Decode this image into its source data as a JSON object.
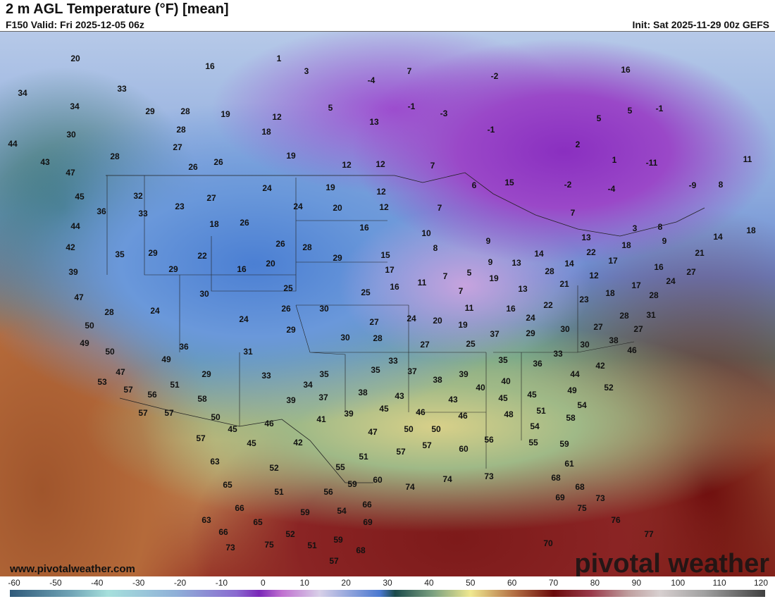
{
  "header": {
    "title": "2 m AGL Temperature (°F) [mean]",
    "valid": "F150 Valid: Fri 2025-12-05 06z",
    "init": "Init: Sat 2025-11-29 00z GEFS"
  },
  "footer": {
    "website": "www.pivotalweather.com",
    "logo": "pivotal weather"
  },
  "colorbar": {
    "units": "°F",
    "ticks": [
      "-60",
      "-50",
      "-40",
      "-30",
      "-20",
      "-10",
      "0",
      "10",
      "20",
      "30",
      "40",
      "50",
      "60",
      "70",
      "80",
      "90",
      "100",
      "110",
      "120"
    ]
  },
  "temperature_labels": [
    "20",
    "16",
    "1",
    "3",
    "-4",
    "7",
    "-2",
    "16",
    "34",
    "33",
    "34",
    "29",
    "28",
    "19",
    "12",
    "5",
    "-1",
    "-3",
    "5",
    "-1",
    "13",
    "30",
    "28",
    "18",
    "-1",
    "5",
    "27",
    "44",
    "28",
    "26",
    "26",
    "19",
    "12",
    "12",
    "7",
    "2",
    "1",
    "-11",
    "11",
    "43",
    "47",
    "45",
    "32",
    "27",
    "24",
    "19",
    "12",
    "6",
    "15",
    "-2",
    "-4",
    "-9",
    "8",
    "36",
    "33",
    "23",
    "24",
    "20",
    "12",
    "7",
    "7",
    "44",
    "18",
    "26",
    "16",
    "10",
    "3",
    "8",
    "14",
    "18",
    "42",
    "35",
    "29",
    "22",
    "26",
    "28",
    "15",
    "8",
    "9",
    "13",
    "18",
    "9",
    "39",
    "16",
    "20",
    "29",
    "17",
    "7",
    "5",
    "9",
    "13",
    "14",
    "22",
    "17",
    "21",
    "29",
    "25",
    "11",
    "19",
    "28",
    "14",
    "12",
    "16",
    "27",
    "30",
    "25",
    "16",
    "7",
    "13",
    "21",
    "18",
    "17",
    "24",
    "47",
    "28",
    "24",
    "26",
    "30",
    "11",
    "16",
    "22",
    "23",
    "28",
    "50",
    "24",
    "29",
    "27",
    "24",
    "20",
    "19",
    "24",
    "31",
    "28",
    "49",
    "30",
    "28",
    "27",
    "25",
    "37",
    "29",
    "30",
    "27",
    "27",
    "50",
    "36",
    "31",
    "38",
    "30",
    "46",
    "49",
    "33",
    "37",
    "35",
    "36",
    "33",
    "42",
    "47",
    "29",
    "33",
    "35",
    "35",
    "39",
    "44",
    "53",
    "51",
    "34",
    "38",
    "40",
    "40",
    "45",
    "49",
    "52",
    "57",
    "56",
    "58",
    "39",
    "37",
    "38",
    "43",
    "45",
    "54",
    "57",
    "57",
    "50",
    "46",
    "41",
    "39",
    "45",
    "46",
    "43",
    "46",
    "48",
    "51",
    "58",
    "45",
    "50",
    "50",
    "54",
    "57",
    "45",
    "42",
    "47",
    "57",
    "57",
    "60",
    "56",
    "55",
    "59",
    "63",
    "52",
    "55",
    "51",
    "61",
    "65",
    "59",
    "60",
    "74",
    "74",
    "73",
    "68",
    "68",
    "51",
    "56",
    "69",
    "66",
    "75",
    "73",
    "66",
    "59",
    "54",
    "63",
    "65",
    "69",
    "76",
    "66",
    "52",
    "77",
    "59",
    "73",
    "75",
    "51",
    "68",
    "70",
    "57"
  ]
}
